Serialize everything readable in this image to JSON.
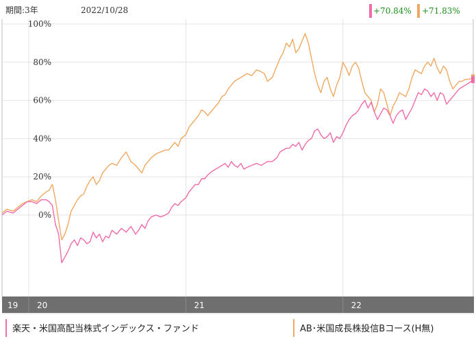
{
  "header": {
    "period_label": "期間:3年",
    "date": "2022/10/28"
  },
  "returns": [
    {
      "value": "+70.84%",
      "color": "#f06ba8"
    },
    {
      "value": "+71.83%",
      "color": "#f0a860"
    }
  ],
  "chart_data": {
    "type": "line",
    "y_ticks": [
      "100%",
      "80%",
      "60%",
      "40%",
      "20%",
      "0%"
    ],
    "ylim": [
      -20,
      100
    ],
    "xlim": [
      2019.83,
      2022.83
    ],
    "x_ticks": [
      {
        "label": "19",
        "x": 2019.83
      },
      {
        "label": "20",
        "x": 2020.0
      },
      {
        "label": "21",
        "x": 2021.0
      },
      {
        "label": "22",
        "x": 2022.0
      }
    ],
    "grid": true,
    "legend_position": "bottom",
    "series": [
      {
        "name": "楽天・米国高配当株式インデックス・ファンド",
        "color": "#f06ba8",
        "points": [
          [
            2019.83,
            0
          ],
          [
            2019.86,
            2
          ],
          [
            2019.9,
            1
          ],
          [
            2019.93,
            3
          ],
          [
            2019.96,
            5
          ],
          [
            2019.99,
            7
          ],
          [
            2020.02,
            7
          ],
          [
            2020.05,
            6
          ],
          [
            2020.08,
            8
          ],
          [
            2020.11,
            8
          ],
          [
            2020.13,
            7
          ],
          [
            2020.15,
            5
          ],
          [
            2020.17,
            -5
          ],
          [
            2020.19,
            -10
          ],
          [
            2020.21,
            -25
          ],
          [
            2020.23,
            -22
          ],
          [
            2020.25,
            -19
          ],
          [
            2020.27,
            -15
          ],
          [
            2020.29,
            -13
          ],
          [
            2020.31,
            -16
          ],
          [
            2020.33,
            -12
          ],
          [
            2020.35,
            -13
          ],
          [
            2020.37,
            -15
          ],
          [
            2020.39,
            -14
          ],
          [
            2020.41,
            -9
          ],
          [
            2020.43,
            -12
          ],
          [
            2020.45,
            -10
          ],
          [
            2020.47,
            -14
          ],
          [
            2020.49,
            -11
          ],
          [
            2020.51,
            -12
          ],
          [
            2020.53,
            -8
          ],
          [
            2020.56,
            -10
          ],
          [
            2020.59,
            -7
          ],
          [
            2020.62,
            -9
          ],
          [
            2020.65,
            -6
          ],
          [
            2020.68,
            -10
          ],
          [
            2020.7,
            -8
          ],
          [
            2020.72,
            -5
          ],
          [
            2020.74,
            -7
          ],
          [
            2020.76,
            -3
          ],
          [
            2020.78,
            -1
          ],
          [
            2020.81,
            0
          ],
          [
            2020.84,
            -1
          ],
          [
            2020.87,
            0
          ],
          [
            2020.89,
            1
          ],
          [
            2020.91,
            4
          ],
          [
            2020.93,
            6
          ],
          [
            2020.95,
            5
          ],
          [
            2020.97,
            7
          ],
          [
            2021.0,
            9
          ],
          [
            2021.02,
            12
          ],
          [
            2021.04,
            14
          ],
          [
            2021.06,
            16
          ],
          [
            2021.08,
            16
          ],
          [
            2021.1,
            19
          ],
          [
            2021.12,
            19
          ],
          [
            2021.14,
            21
          ],
          [
            2021.17,
            23
          ],
          [
            2021.19,
            24
          ],
          [
            2021.21,
            25
          ],
          [
            2021.23,
            26
          ],
          [
            2021.25,
            27
          ],
          [
            2021.27,
            25
          ],
          [
            2021.29,
            28
          ],
          [
            2021.31,
            26
          ],
          [
            2021.33,
            25
          ],
          [
            2021.35,
            27
          ],
          [
            2021.37,
            24
          ],
          [
            2021.39,
            25
          ],
          [
            2021.42,
            26
          ],
          [
            2021.45,
            27
          ],
          [
            2021.48,
            26
          ],
          [
            2021.5,
            27
          ],
          [
            2021.52,
            28
          ],
          [
            2021.55,
            28
          ],
          [
            2021.58,
            30
          ],
          [
            2021.6,
            33
          ],
          [
            2021.62,
            34
          ],
          [
            2021.64,
            35
          ],
          [
            2021.66,
            35
          ],
          [
            2021.68,
            37
          ],
          [
            2021.7,
            36
          ],
          [
            2021.72,
            38
          ],
          [
            2021.74,
            34
          ],
          [
            2021.76,
            37
          ],
          [
            2021.78,
            39
          ],
          [
            2021.8,
            40
          ],
          [
            2021.82,
            44
          ],
          [
            2021.84,
            45
          ],
          [
            2021.86,
            42
          ],
          [
            2021.88,
            40
          ],
          [
            2021.9,
            41
          ],
          [
            2021.92,
            43
          ],
          [
            2021.94,
            38
          ],
          [
            2021.96,
            41
          ],
          [
            2021.98,
            40
          ],
          [
            2022.0,
            43
          ],
          [
            2022.02,
            47
          ],
          [
            2022.04,
            50
          ],
          [
            2022.06,
            52
          ],
          [
            2022.08,
            53
          ],
          [
            2022.1,
            55
          ],
          [
            2022.12,
            58
          ],
          [
            2022.14,
            60
          ],
          [
            2022.16,
            56
          ],
          [
            2022.18,
            59
          ],
          [
            2022.2,
            54
          ],
          [
            2022.22,
            50
          ],
          [
            2022.24,
            53
          ],
          [
            2022.26,
            56
          ],
          [
            2022.28,
            55
          ],
          [
            2022.3,
            52
          ],
          [
            2022.32,
            48
          ],
          [
            2022.34,
            52
          ],
          [
            2022.36,
            54
          ],
          [
            2022.38,
            55
          ],
          [
            2022.4,
            50
          ],
          [
            2022.42,
            53
          ],
          [
            2022.44,
            56
          ],
          [
            2022.46,
            60
          ],
          [
            2022.48,
            64
          ],
          [
            2022.5,
            63
          ],
          [
            2022.52,
            66
          ],
          [
            2022.54,
            65
          ],
          [
            2022.56,
            62
          ],
          [
            2022.58,
            64
          ],
          [
            2022.6,
            60
          ],
          [
            2022.62,
            64
          ],
          [
            2022.64,
            63
          ],
          [
            2022.66,
            58
          ],
          [
            2022.68,
            60
          ],
          [
            2022.7,
            62
          ],
          [
            2022.72,
            64
          ],
          [
            2022.74,
            66
          ],
          [
            2022.76,
            67
          ],
          [
            2022.78,
            68
          ],
          [
            2022.8,
            69
          ],
          [
            2022.83,
            70.84
          ]
        ]
      },
      {
        "name": "AB･米国成長株投信Bコース(H無)",
        "color": "#f0a860",
        "points": [
          [
            2019.83,
            1
          ],
          [
            2019.86,
            3
          ],
          [
            2019.9,
            2
          ],
          [
            2019.93,
            4
          ],
          [
            2019.96,
            6
          ],
          [
            2019.99,
            7
          ],
          [
            2020.02,
            8
          ],
          [
            2020.05,
            7
          ],
          [
            2020.08,
            10
          ],
          [
            2020.11,
            12
          ],
          [
            2020.13,
            13
          ],
          [
            2020.15,
            16
          ],
          [
            2020.17,
            8
          ],
          [
            2020.19,
            -3
          ],
          [
            2020.21,
            -13
          ],
          [
            2020.23,
            -10
          ],
          [
            2020.25,
            -5
          ],
          [
            2020.27,
            2
          ],
          [
            2020.29,
            5
          ],
          [
            2020.31,
            8
          ],
          [
            2020.33,
            10
          ],
          [
            2020.35,
            11
          ],
          [
            2020.37,
            15
          ],
          [
            2020.39,
            18
          ],
          [
            2020.41,
            20
          ],
          [
            2020.43,
            16
          ],
          [
            2020.45,
            18
          ],
          [
            2020.47,
            22
          ],
          [
            2020.49,
            24
          ],
          [
            2020.51,
            26
          ],
          [
            2020.53,
            27
          ],
          [
            2020.56,
            26
          ],
          [
            2020.59,
            30
          ],
          [
            2020.62,
            33
          ],
          [
            2020.65,
            28
          ],
          [
            2020.68,
            26
          ],
          [
            2020.7,
            24
          ],
          [
            2020.72,
            22
          ],
          [
            2020.74,
            26
          ],
          [
            2020.76,
            28
          ],
          [
            2020.78,
            30
          ],
          [
            2020.81,
            32
          ],
          [
            2020.84,
            33
          ],
          [
            2020.87,
            34
          ],
          [
            2020.89,
            34
          ],
          [
            2020.91,
            36
          ],
          [
            2020.93,
            38
          ],
          [
            2020.95,
            36
          ],
          [
            2020.97,
            40
          ],
          [
            2021.0,
            42
          ],
          [
            2021.02,
            46
          ],
          [
            2021.04,
            48
          ],
          [
            2021.06,
            50
          ],
          [
            2021.08,
            52
          ],
          [
            2021.1,
            55
          ],
          [
            2021.12,
            54
          ],
          [
            2021.14,
            52
          ],
          [
            2021.17,
            55
          ],
          [
            2021.19,
            57
          ],
          [
            2021.21,
            59
          ],
          [
            2021.23,
            62
          ],
          [
            2021.25,
            63
          ],
          [
            2021.27,
            66
          ],
          [
            2021.29,
            68
          ],
          [
            2021.31,
            70
          ],
          [
            2021.33,
            71
          ],
          [
            2021.35,
            72
          ],
          [
            2021.37,
            73
          ],
          [
            2021.39,
            74
          ],
          [
            2021.42,
            73
          ],
          [
            2021.45,
            76
          ],
          [
            2021.48,
            75
          ],
          [
            2021.5,
            74
          ],
          [
            2021.52,
            70
          ],
          [
            2021.55,
            72
          ],
          [
            2021.58,
            78
          ],
          [
            2021.6,
            82
          ],
          [
            2021.62,
            85
          ],
          [
            2021.64,
            90
          ],
          [
            2021.66,
            88
          ],
          [
            2021.68,
            92
          ],
          [
            2021.7,
            85
          ],
          [
            2021.72,
            87
          ],
          [
            2021.74,
            91
          ],
          [
            2021.76,
            95
          ],
          [
            2021.78,
            90
          ],
          [
            2021.8,
            82
          ],
          [
            2021.82,
            74
          ],
          [
            2021.84,
            68
          ],
          [
            2021.86,
            64
          ],
          [
            2021.88,
            70
          ],
          [
            2021.9,
            72
          ],
          [
            2021.92,
            66
          ],
          [
            2021.94,
            62
          ],
          [
            2021.96,
            68
          ],
          [
            2021.98,
            72
          ],
          [
            2022.0,
            80
          ],
          [
            2022.02,
            77
          ],
          [
            2022.04,
            73
          ],
          [
            2022.06,
            78
          ],
          [
            2022.08,
            80
          ],
          [
            2022.1,
            77
          ],
          [
            2022.12,
            70
          ],
          [
            2022.14,
            64
          ],
          [
            2022.16,
            62
          ],
          [
            2022.18,
            60
          ],
          [
            2022.2,
            54
          ],
          [
            2022.22,
            58
          ],
          [
            2022.24,
            66
          ],
          [
            2022.26,
            64
          ],
          [
            2022.28,
            58
          ],
          [
            2022.3,
            52
          ],
          [
            2022.32,
            57
          ],
          [
            2022.34,
            60
          ],
          [
            2022.36,
            64
          ],
          [
            2022.38,
            63
          ],
          [
            2022.4,
            62
          ],
          [
            2022.42,
            66
          ],
          [
            2022.44,
            72
          ],
          [
            2022.46,
            76
          ],
          [
            2022.48,
            75
          ],
          [
            2022.5,
            74
          ],
          [
            2022.52,
            78
          ],
          [
            2022.54,
            80
          ],
          [
            2022.56,
            78
          ],
          [
            2022.58,
            82
          ],
          [
            2022.6,
            77
          ],
          [
            2022.62,
            74
          ],
          [
            2022.64,
            78
          ],
          [
            2022.66,
            76
          ],
          [
            2022.68,
            70
          ],
          [
            2022.7,
            66
          ],
          [
            2022.72,
            68
          ],
          [
            2022.74,
            70
          ],
          [
            2022.76,
            70
          ],
          [
            2022.78,
            71
          ],
          [
            2022.8,
            71
          ],
          [
            2022.83,
            71.83
          ]
        ]
      }
    ]
  }
}
